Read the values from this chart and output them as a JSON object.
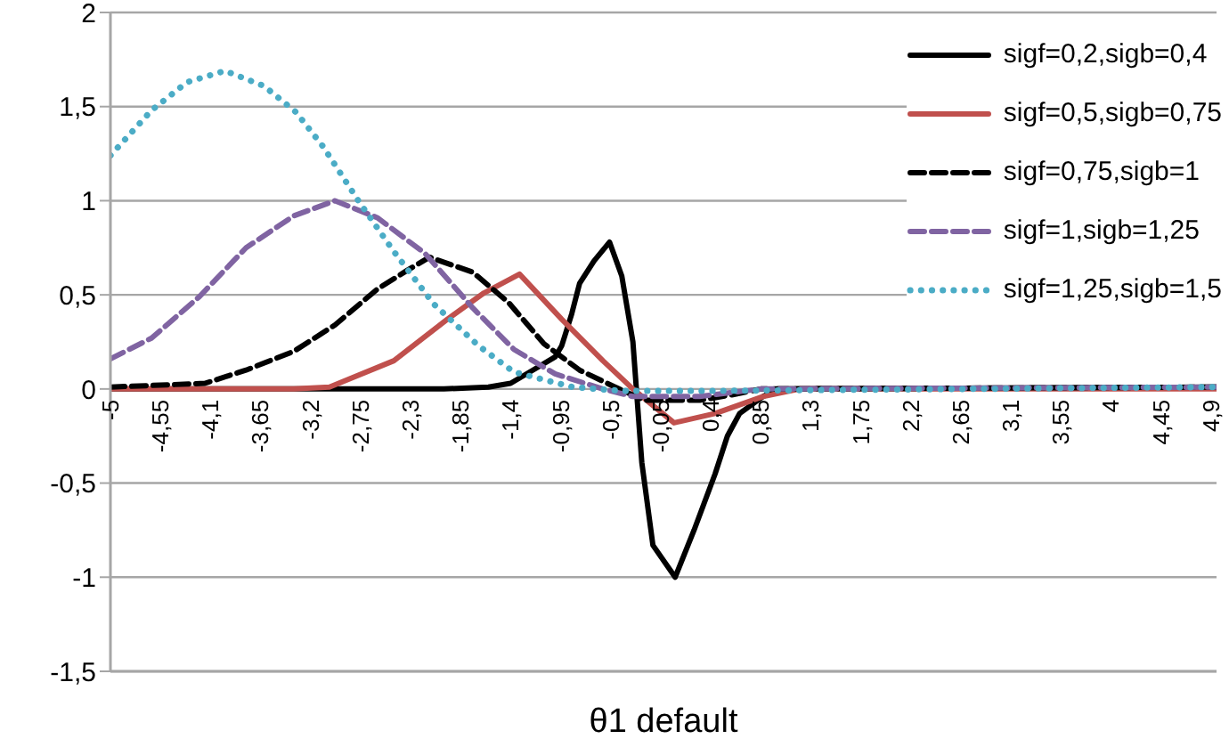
{
  "chart_data": {
    "type": "line",
    "xlabel": "θ1 default",
    "xlim": [
      -5,
      4.95
    ],
    "xticks": [
      {
        "value": -5,
        "label": "-5"
      },
      {
        "value": -4.55,
        "label": "-4,55"
      },
      {
        "value": -4.1,
        "label": "-4,1"
      },
      {
        "value": -3.65,
        "label": "-3,65"
      },
      {
        "value": -3.2,
        "label": "-3,2"
      },
      {
        "value": -2.75,
        "label": "-2,75"
      },
      {
        "value": -2.3,
        "label": "-2,3"
      },
      {
        "value": -1.85,
        "label": "-1,85"
      },
      {
        "value": -1.4,
        "label": "-1,4"
      },
      {
        "value": -0.95,
        "label": "-0,95"
      },
      {
        "value": -0.5,
        "label": "-0,5"
      },
      {
        "value": -0.05,
        "label": "-0,05"
      },
      {
        "value": 0.4,
        "label": "0,4"
      },
      {
        "value": 0.85,
        "label": "0,85"
      },
      {
        "value": 1.3,
        "label": "1,3"
      },
      {
        "value": 1.75,
        "label": "1,75"
      },
      {
        "value": 2.2,
        "label": "2,2"
      },
      {
        "value": 2.65,
        "label": "2,65"
      },
      {
        "value": 3.1,
        "label": "3,1"
      },
      {
        "value": 3.55,
        "label": "3,55"
      },
      {
        "value": 4,
        "label": "4"
      },
      {
        "value": 4.45,
        "label": "4,45"
      },
      {
        "value": 4.9,
        "label": "4,9"
      }
    ],
    "ylim": [
      -1.5,
      2
    ],
    "yticks": [
      {
        "value": -1.5,
        "label": "-1,5"
      },
      {
        "value": -1,
        "label": "-1"
      },
      {
        "value": -0.5,
        "label": "-0,5"
      },
      {
        "value": 0,
        "label": "0"
      },
      {
        "value": 0.5,
        "label": "0,5"
      },
      {
        "value": 1,
        "label": "1"
      },
      {
        "value": 1.5,
        "label": "1,5"
      },
      {
        "value": 2,
        "label": "2"
      }
    ],
    "grid": "y",
    "legend": "top right",
    "marker": "none",
    "series": [
      {
        "name": "sigf=0,2,sigb=0,4",
        "color": "#000000",
        "line_style": "solid",
        "x": [
          -5,
          -2,
          -1.6,
          -1.4,
          -1.2,
          -1,
          -0.94,
          -0.85,
          -0.78,
          -0.65,
          -0.51,
          -0.4,
          -0.3,
          -0.22,
          -0.12,
          0.08,
          0.25,
          0.44,
          0.55,
          0.66,
          0.87,
          1,
          4.95
        ],
        "values": [
          0,
          0,
          0.01,
          0.03,
          0.1,
          0.17,
          0.23,
          0.4,
          0.56,
          0.68,
          0.78,
          0.6,
          0.25,
          -0.39,
          -0.83,
          -1,
          -0.75,
          -0.45,
          -0.25,
          -0.13,
          -0.04,
          0,
          0.01
        ]
      },
      {
        "name": "sigf=0,5,sigb=0,75",
        "color": "#c0504d",
        "line_style": "solid",
        "x": [
          -5,
          -3.35,
          -3.03,
          -2.45,
          -1.97,
          -1.64,
          -1.32,
          -0.94,
          -0.57,
          -0.3,
          0.07,
          0.44,
          0.87,
          1.2,
          4.95
        ],
        "values": [
          0,
          0,
          0.01,
          0.15,
          0.37,
          0.51,
          0.61,
          0.37,
          0.15,
          0,
          -0.18,
          -0.13,
          -0.04,
          0,
          0
        ]
      },
      {
        "name": "sigf=0,75,sigb=1",
        "color": "#000000",
        "line_style": "dashed",
        "x": [
          -5,
          -4.15,
          -3.78,
          -3.35,
          -2.98,
          -2.6,
          -2.33,
          -2.13,
          -1.74,
          -1.42,
          -1.1,
          -0.78,
          -0.46,
          -0.2,
          0.3,
          0.6,
          0.85,
          4.95
        ],
        "values": [
          0.01,
          0.03,
          0.1,
          0.2,
          0.34,
          0.53,
          0.63,
          0.7,
          0.62,
          0.46,
          0.24,
          0.1,
          0.01,
          -0.06,
          -0.06,
          -0.03,
          0,
          0.01
        ]
      },
      {
        "name": "sigf=1,sigb=1,25",
        "color": "#8064a2",
        "line_style": "dashed",
        "x": [
          -5,
          -4.63,
          -4.2,
          -3.78,
          -3.35,
          -2.98,
          -2.6,
          -2.17,
          -1.74,
          -1.37,
          -1,
          -0.57,
          -0.3,
          0.3,
          0.85,
          4.95
        ],
        "values": [
          0.16,
          0.27,
          0.49,
          0.75,
          0.92,
          1,
          0.91,
          0.72,
          0.43,
          0.21,
          0.08,
          0,
          -0.04,
          -0.04,
          0,
          0.01
        ]
      },
      {
        "name": "sigf=1,25,sigb=1,5",
        "color": "#4bacc6",
        "line_style": "dotted",
        "x": [
          -5,
          -4.63,
          -4.31,
          -3.97,
          -3.62,
          -3.33,
          -3.09,
          -2.77,
          -2.45,
          -2.09,
          -1.69,
          -1.37,
          -0.84,
          -0.4,
          0.5,
          4.95
        ],
        "values": [
          1.24,
          1.48,
          1.63,
          1.69,
          1.61,
          1.47,
          1.29,
          1,
          0.73,
          0.45,
          0.23,
          0.09,
          0.01,
          -0.01,
          -0.01,
          0.01
        ]
      }
    ]
  }
}
